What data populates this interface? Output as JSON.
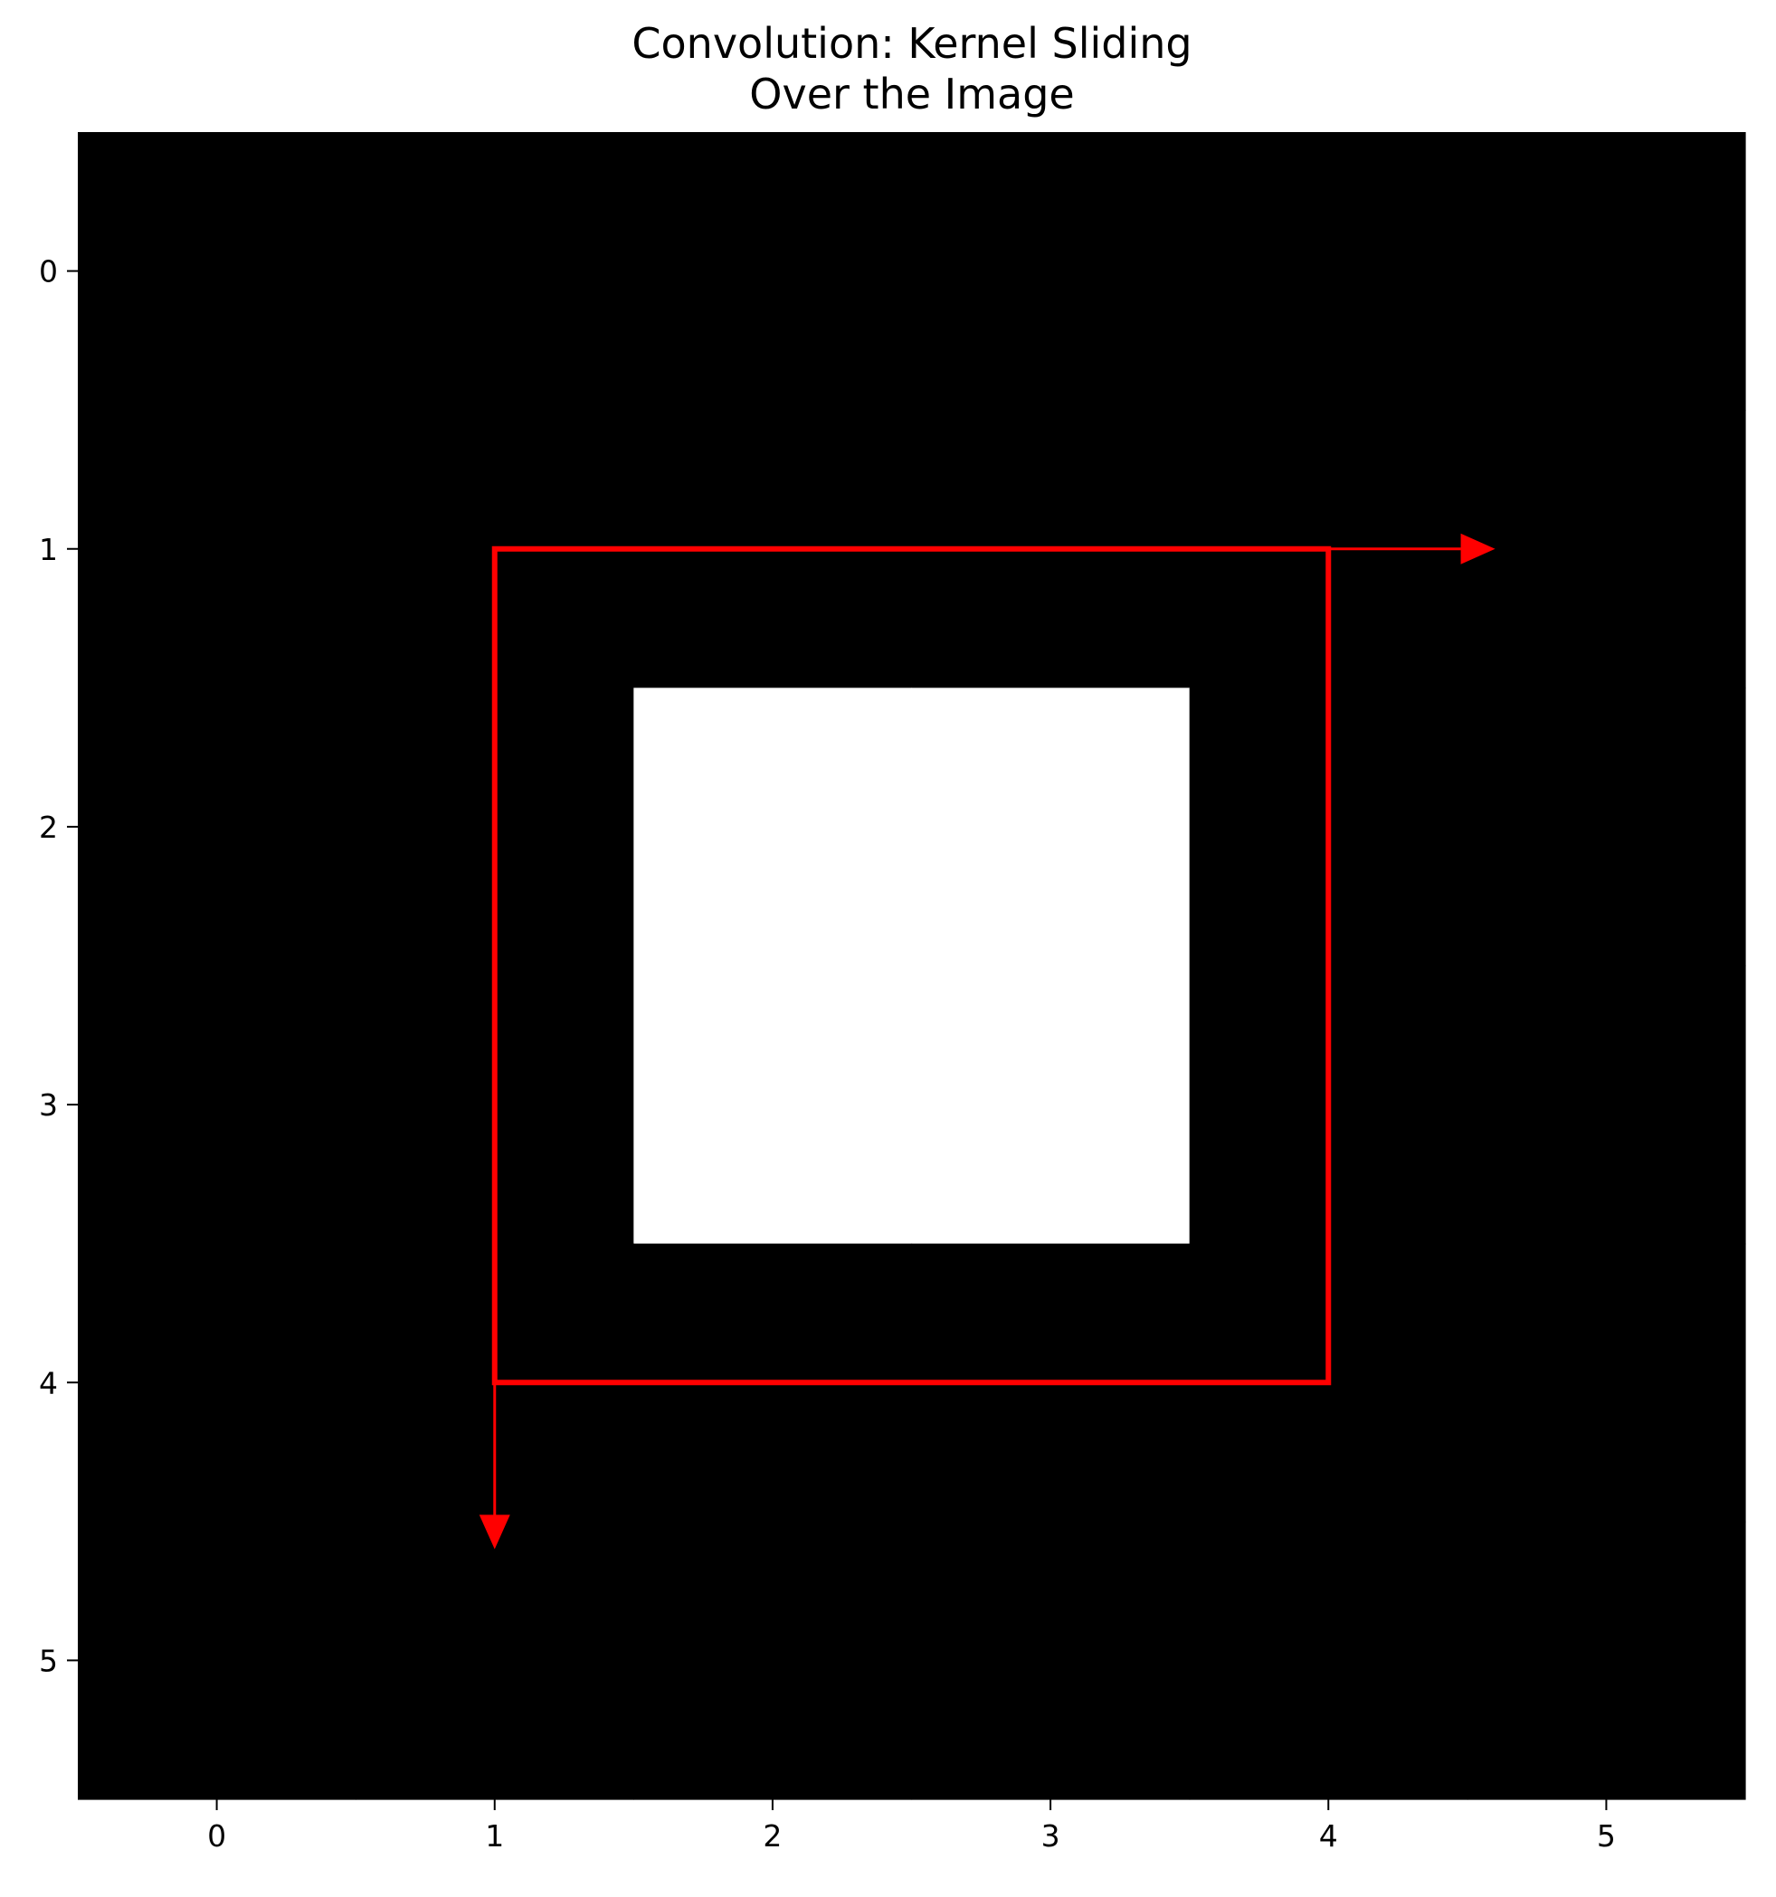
{
  "chart_data": {
    "type": "heatmap",
    "title": "Convolution: Kernel Sliding\nOver the Image",
    "title_lines": [
      "Convolution: Kernel Sliding",
      "Over the Image"
    ],
    "xlabel": "",
    "ylabel": "",
    "x_ticks": [
      "0",
      "1",
      "2",
      "3",
      "4",
      "5"
    ],
    "y_ticks": [
      "0",
      "1",
      "2",
      "3",
      "4",
      "5"
    ],
    "xlim": [
      -0.5,
      5.5
    ],
    "ylim": [
      5.5,
      -0.5
    ],
    "grid": false,
    "colormap": "gray",
    "image": [
      [
        0,
        0,
        0,
        0,
        0,
        0
      ],
      [
        0,
        0,
        0,
        0,
        0,
        0
      ],
      [
        0,
        0,
        1,
        1,
        0,
        0
      ],
      [
        0,
        0,
        1,
        1,
        0,
        0
      ],
      [
        0,
        0,
        0,
        0,
        0,
        0
      ],
      [
        0,
        0,
        0,
        0,
        0,
        0
      ]
    ],
    "kernel_box": {
      "x": [
        1,
        4
      ],
      "y": [
        1,
        4
      ],
      "color": "#ff0000"
    },
    "arrows": [
      {
        "name": "arrow-right",
        "from": [
          4,
          1
        ],
        "to": [
          4.6,
          1
        ],
        "color": "#ff0000"
      },
      {
        "name": "arrow-down",
        "from": [
          1,
          4
        ],
        "to": [
          1,
          4.6
        ],
        "color": "#ff0000"
      }
    ]
  }
}
